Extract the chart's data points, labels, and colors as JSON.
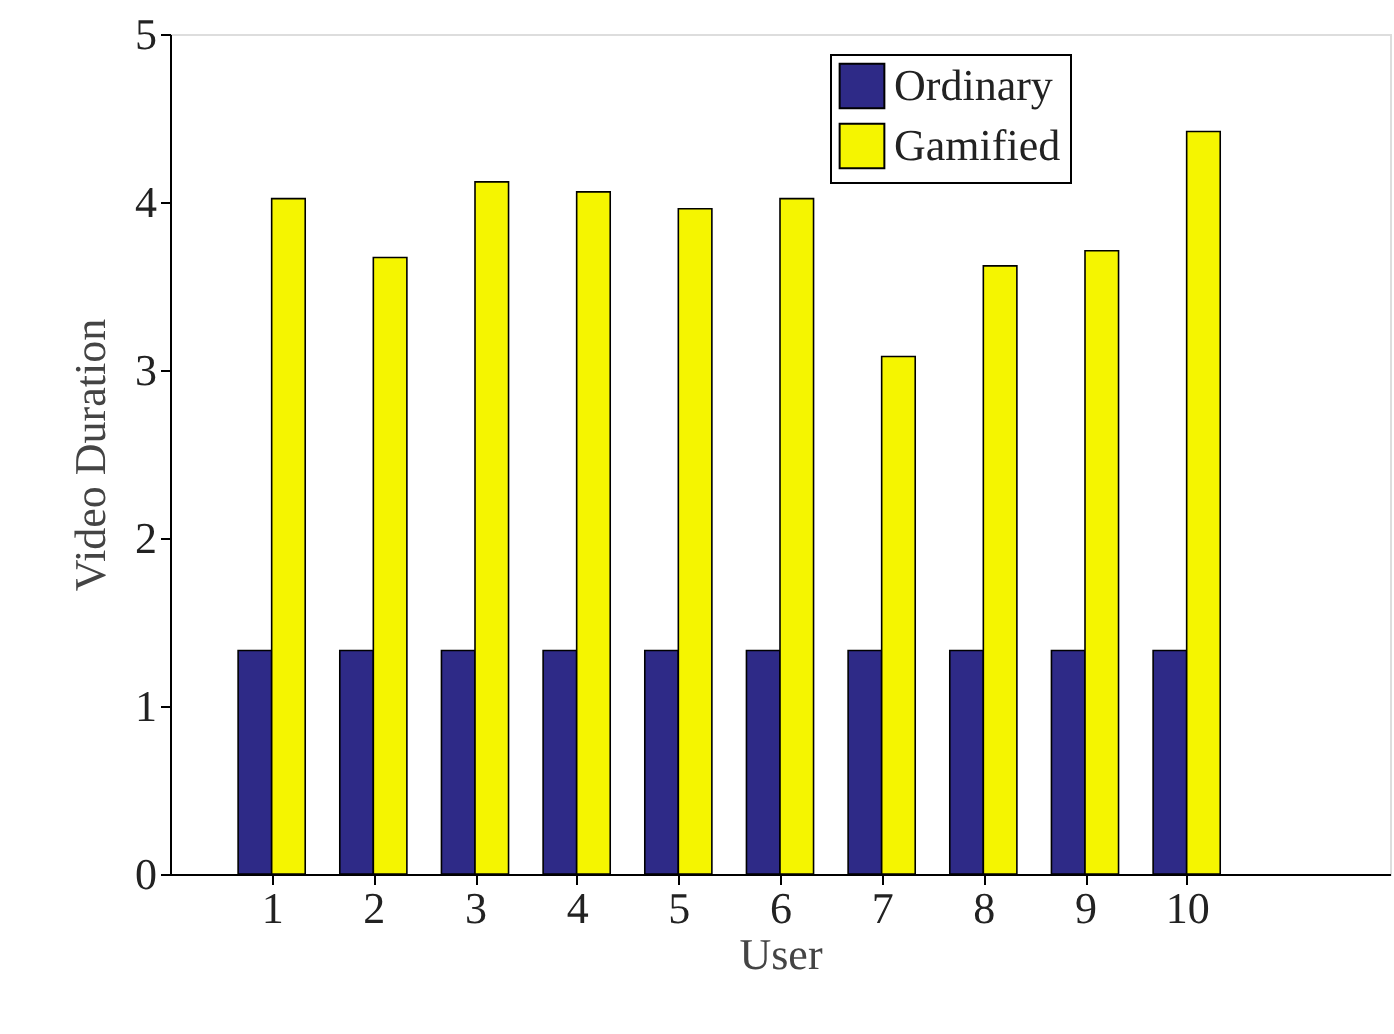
{
  "chart_data": {
    "type": "bar",
    "xlabel": "User",
    "ylabel": "Video Duration",
    "x": [
      1,
      2,
      3,
      4,
      5,
      6,
      7,
      8,
      9,
      10
    ],
    "series": [
      {
        "name": "Ordinary",
        "color": "#2e2a87",
        "values": [
          1.33,
          1.33,
          1.33,
          1.33,
          1.33,
          1.33,
          1.33,
          1.33,
          1.33,
          1.33
        ]
      },
      {
        "name": "Gamified",
        "color": "#f5f500",
        "values": [
          4.02,
          3.67,
          4.12,
          4.06,
          3.96,
          4.02,
          3.08,
          3.62,
          3.71,
          4.42
        ]
      }
    ],
    "xlim": [
      0,
      12
    ],
    "xticks": [
      1,
      2,
      3,
      4,
      5,
      6,
      7,
      8,
      9,
      10
    ],
    "ylim": [
      0,
      5
    ],
    "yticks": [
      0,
      1,
      2,
      3,
      4,
      5
    ],
    "grid": false,
    "legend": "top right"
  }
}
